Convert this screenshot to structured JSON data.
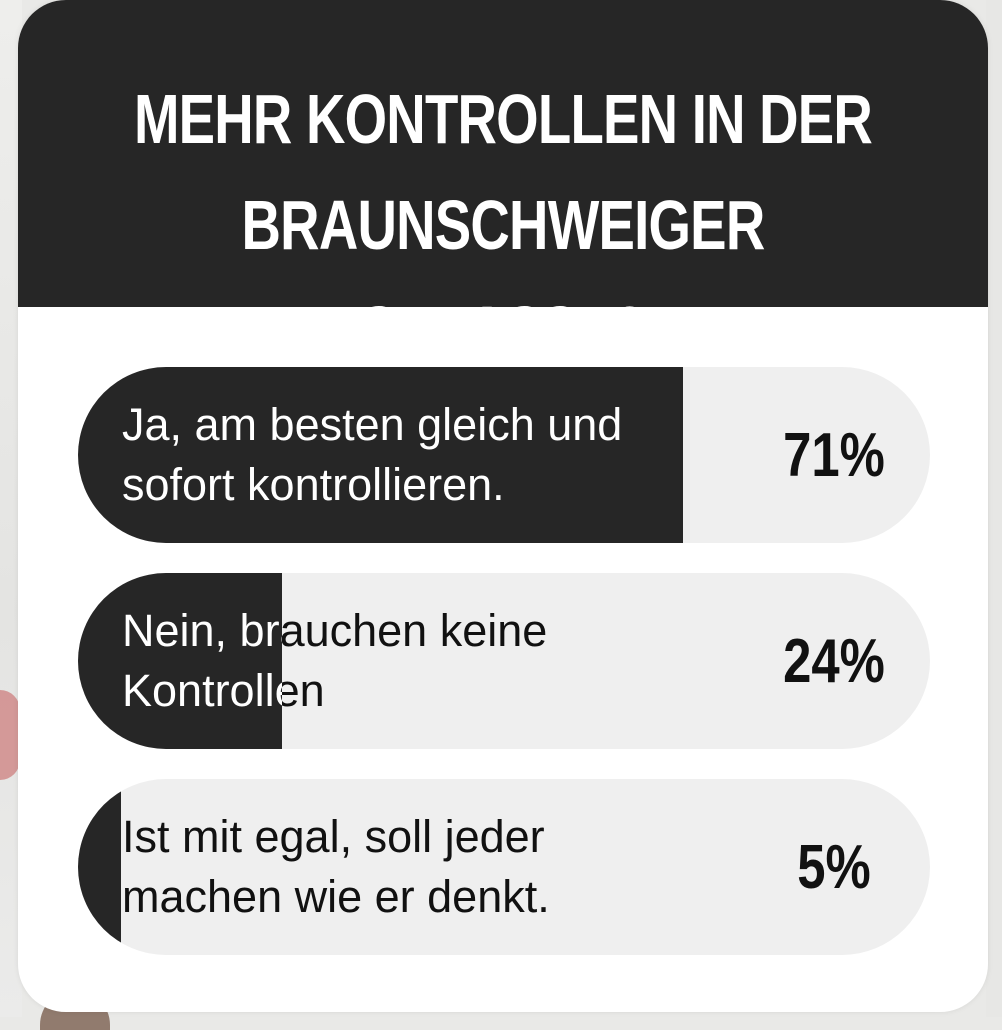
{
  "poll": {
    "title": "MEHR KONTROLLEN IN DER\nBRAUNSCHWEIGER STRASSE?",
    "options": [
      {
        "label": "Ja, am besten gleich und\nsofort kontrollieren.",
        "percent_label": "71%",
        "percent": 71
      },
      {
        "label": "Nein, brauchen keine\nKontrollen",
        "percent_label": "24%",
        "percent": 24
      },
      {
        "label": "Ist mit egal, soll jeder\nmachen wie er denkt.",
        "percent_label": "5%",
        "percent": 5
      }
    ]
  },
  "colors": {
    "header_bg": "#262626",
    "bar_fill": "#262626",
    "bar_track": "#efefef",
    "card_bg": "#ffffff"
  }
}
